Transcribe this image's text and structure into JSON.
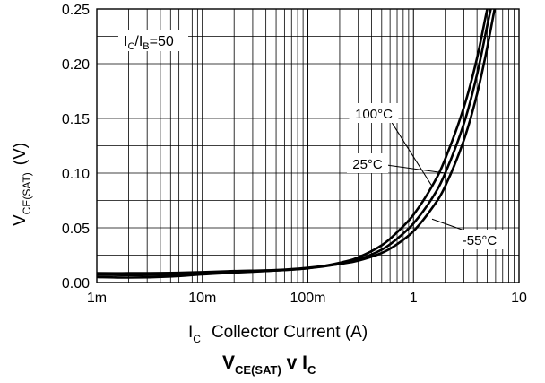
{
  "chart_data": {
    "type": "line",
    "title": "VCE(SAT) v IC",
    "title_main": "V",
    "title_sub": "CE(SAT)",
    "title_mid": " v I",
    "title_sub2": "C",
    "xlabel_main": "I",
    "xlabel_sub": "C",
    "xlabel_text": "Collector Current (A)",
    "ylabel_main": "V",
    "ylabel_sub": "CE(SAT)",
    "ylabel_unit": "(V)",
    "x_scale": "log",
    "xlim": [
      0.001,
      10
    ],
    "ylim": [
      0,
      0.25
    ],
    "x_ticks": [
      {
        "value": 0.001,
        "label": "1m"
      },
      {
        "value": 0.01,
        "label": "10m"
      },
      {
        "value": 0.1,
        "label": "100m"
      },
      {
        "value": 1,
        "label": "1"
      },
      {
        "value": 10,
        "label": "10"
      }
    ],
    "y_ticks": [
      {
        "value": 0,
        "label": "0.00"
      },
      {
        "value": 0.05,
        "label": "0.05"
      },
      {
        "value": 0.1,
        "label": "0.10"
      },
      {
        "value": 0.15,
        "label": "0.15"
      },
      {
        "value": 0.2,
        "label": "0.20"
      },
      {
        "value": 0.25,
        "label": "0.25"
      }
    ],
    "grid": true,
    "annotation": {
      "main": "I",
      "sub1": "C",
      "mid": "/I",
      "sub2": "B",
      "tail": "=50"
    },
    "series": [
      {
        "name": "100°C",
        "x": [
          0.001,
          0.002,
          0.005,
          0.01,
          0.02,
          0.05,
          0.1,
          0.2,
          0.3,
          0.5,
          0.7,
          1,
          1.5,
          2,
          3,
          4,
          5,
          6
        ],
        "y": [
          0.005,
          0.0045,
          0.0055,
          0.0075,
          0.009,
          0.011,
          0.013,
          0.018,
          0.023,
          0.034,
          0.046,
          0.062,
          0.088,
          0.113,
          0.16,
          0.205,
          0.25,
          0.28
        ],
        "label_at": {
          "x": 1.5,
          "y": 0.088
        }
      },
      {
        "name": "25°C",
        "x": [
          0.001,
          0.002,
          0.005,
          0.01,
          0.02,
          0.05,
          0.1,
          0.2,
          0.3,
          0.5,
          0.7,
          1,
          1.5,
          2,
          3,
          4,
          5,
          6
        ],
        "y": [
          0.007,
          0.0068,
          0.0072,
          0.0085,
          0.0095,
          0.011,
          0.013,
          0.017,
          0.021,
          0.03,
          0.04,
          0.054,
          0.077,
          0.1,
          0.145,
          0.19,
          0.235,
          0.27
        ],
        "label_at": {
          "x": 2,
          "y": 0.1
        }
      },
      {
        "name": "-55°C",
        "x": [
          0.001,
          0.002,
          0.005,
          0.01,
          0.02,
          0.05,
          0.1,
          0.2,
          0.3,
          0.5,
          0.7,
          1,
          1.5,
          2,
          3,
          4,
          5,
          6
        ],
        "y": [
          0.0085,
          0.0085,
          0.0088,
          0.0095,
          0.0105,
          0.0115,
          0.0135,
          0.017,
          0.02,
          0.027,
          0.035,
          0.047,
          0.068,
          0.088,
          0.13,
          0.172,
          0.215,
          0.255
        ],
        "label_at": {
          "x": 1.5,
          "y": 0.058
        }
      }
    ]
  }
}
